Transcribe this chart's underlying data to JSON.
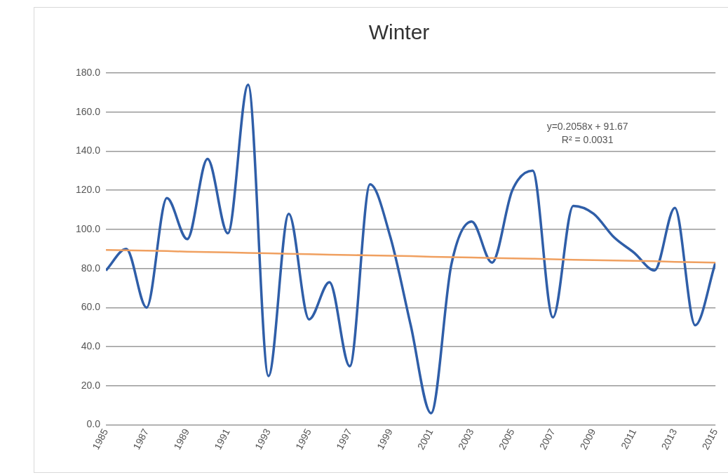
{
  "chart_data": {
    "type": "line",
    "title": "Winter",
    "categories": [
      "1985",
      null,
      "1987",
      null,
      "1989",
      null,
      "1991",
      null,
      "1993",
      null,
      "1995",
      null,
      "1997",
      null,
      "1999",
      null,
      "2001",
      null,
      "2003",
      null,
      "2005",
      null,
      "2007",
      null,
      "2009",
      null,
      "2011",
      null,
      "2013",
      null,
      "2015"
    ],
    "series": [
      {
        "color": "#2f5ea8",
        "values": [
          79,
          90,
          60,
          116,
          95,
          136,
          98,
          174,
          25,
          108,
          54,
          73,
          30,
          123,
          96,
          51,
          6,
          82,
          104,
          83,
          120,
          130,
          55,
          112,
          108,
          96,
          88,
          79,
          111,
          51,
          83
        ]
      },
      {
        "type": "line",
        "color": "#f0a060",
        "values": [
          89.5,
          89.3,
          89.1,
          88.9,
          88.6,
          88.4,
          88.2,
          88,
          87.8,
          87.5,
          87.3,
          87.1,
          86.9,
          86.7,
          86.5,
          86.3,
          86,
          85.8,
          85.6,
          85.4,
          85.2,
          85,
          84.7,
          84.5,
          84.3,
          84.1,
          83.9,
          83.7,
          83.4,
          83.2,
          83
        ]
      }
    ],
    "ylim": [
      0,
      180
    ],
    "yticks": [
      {
        "value": 0,
        "label": "0.0"
      },
      {
        "value": 20,
        "label": "20.0"
      },
      {
        "value": 40,
        "label": "40.0"
      },
      {
        "value": 60,
        "label": "60.0"
      },
      {
        "value": 80,
        "label": "80.0"
      },
      {
        "value": 100,
        "label": "100.0"
      },
      {
        "value": 120,
        "label": "120.0"
      },
      {
        "value": 140,
        "label": "140.0"
      },
      {
        "value": 160,
        "label": "160.0"
      },
      {
        "value": 180,
        "label": "180.0"
      }
    ],
    "grid": "y",
    "legend": false,
    "marker": "none",
    "line_style": "solid",
    "annotations": [
      "y=0.2058x + 91.67",
      "R² = 0.0031"
    ]
  }
}
